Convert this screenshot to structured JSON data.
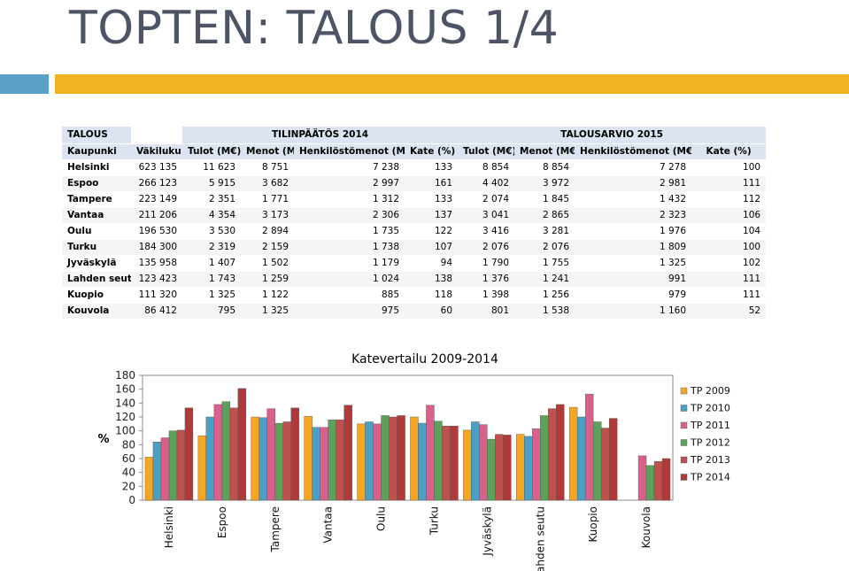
{
  "slide": {
    "title": "TOPTEN: TALOUS 1/4"
  },
  "table": {
    "corner_label": "TALOUS",
    "group_headers": [
      "TILINPÄÄTÖS 2014",
      "TALOUSARVIO 2015"
    ],
    "columns": [
      "Kaupunki",
      "Väkiluku",
      "Tulot (M€)",
      "Menot (M€)",
      "Henkilöstömenot (M€)",
      "Kate (%)",
      "Tulot (M€)",
      "Menot (M€)",
      "Henkilöstömenot (M€)",
      "Kate (%)"
    ],
    "rows": [
      [
        "Helsinki",
        "623 135",
        "11 623",
        "8 751",
        "7 238",
        "133",
        "8 854",
        "8 854",
        "7 278",
        "100"
      ],
      [
        "Espoo",
        "266 123",
        "5 915",
        "3 682",
        "2 997",
        "161",
        "4 402",
        "3 972",
        "2 981",
        "111"
      ],
      [
        "Tampere",
        "223 149",
        "2 351",
        "1 771",
        "1 312",
        "133",
        "2 074",
        "1 845",
        "1 432",
        "112"
      ],
      [
        "Vantaa",
        "211 206",
        "4 354",
        "3 173",
        "2 306",
        "137",
        "3 041",
        "2 865",
        "2 323",
        "106"
      ],
      [
        "Oulu",
        "196 530",
        "3 530",
        "2 894",
        "1 735",
        "122",
        "3 416",
        "3 281",
        "1 976",
        "104"
      ],
      [
        "Turku",
        "184 300",
        "2 319",
        "2 159",
        "1 738",
        "107",
        "2 076",
        "2 076",
        "1 809",
        "100"
      ],
      [
        "Jyväskylä",
        "135 958",
        "1 407",
        "1 502",
        "1 179",
        "94",
        "1 790",
        "1 755",
        "1 325",
        "102"
      ],
      [
        "Lahden seutu",
        "123 423",
        "1 743",
        "1 259",
        "1 024",
        "138",
        "1 376",
        "1 241",
        "991",
        "111"
      ],
      [
        "Kuopio",
        "111 320",
        "1 325",
        "1 122",
        "885",
        "118",
        "1 398",
        "1 256",
        "979",
        "111"
      ],
      [
        "Kouvola",
        "86 412",
        "795",
        "1 325",
        "975",
        "60",
        "801",
        "1 538",
        "1 160",
        "52"
      ]
    ]
  },
  "chart_data": {
    "type": "bar",
    "title": "Katevertailu 2009-2014",
    "ylabel": "%",
    "xlabel": "",
    "ylim": [
      0,
      180
    ],
    "yticks": [
      0,
      20,
      40,
      60,
      80,
      100,
      120,
      140,
      160,
      180
    ],
    "grid": false,
    "legend_position": "right",
    "categories": [
      "Helsinki",
      "Espoo",
      "Tampere",
      "Vantaa",
      "Oulu",
      "Turku",
      "Jyväskylä",
      "Lahden seutu",
      "Kuopio",
      "Kouvola"
    ],
    "series": [
      {
        "name": "TP 2009",
        "color": "#f5a623",
        "values": [
          62,
          93,
          120,
          121,
          110,
          120,
          101,
          95,
          134,
          null
        ]
      },
      {
        "name": "TP 2010",
        "color": "#4a9fc4",
        "values": [
          84,
          120,
          119,
          105,
          113,
          111,
          113,
          92,
          120,
          null
        ]
      },
      {
        "name": "TP 2011",
        "color": "#d9608a",
        "values": [
          90,
          138,
          132,
          105,
          110,
          137,
          109,
          103,
          153,
          64
        ]
      },
      {
        "name": "TP 2012",
        "color": "#5da05a",
        "values": [
          100,
          142,
          111,
          116,
          122,
          114,
          88,
          122,
          113,
          50
        ]
      },
      {
        "name": "TP 2013",
        "color": "#c0504d",
        "values": [
          101,
          133,
          113,
          116,
          120,
          107,
          95,
          132,
          104,
          56
        ]
      },
      {
        "name": "TP 2014",
        "color": "#b03a3a",
        "values": [
          133,
          161,
          133,
          137,
          122,
          107,
          94,
          138,
          118,
          60
        ]
      }
    ]
  }
}
